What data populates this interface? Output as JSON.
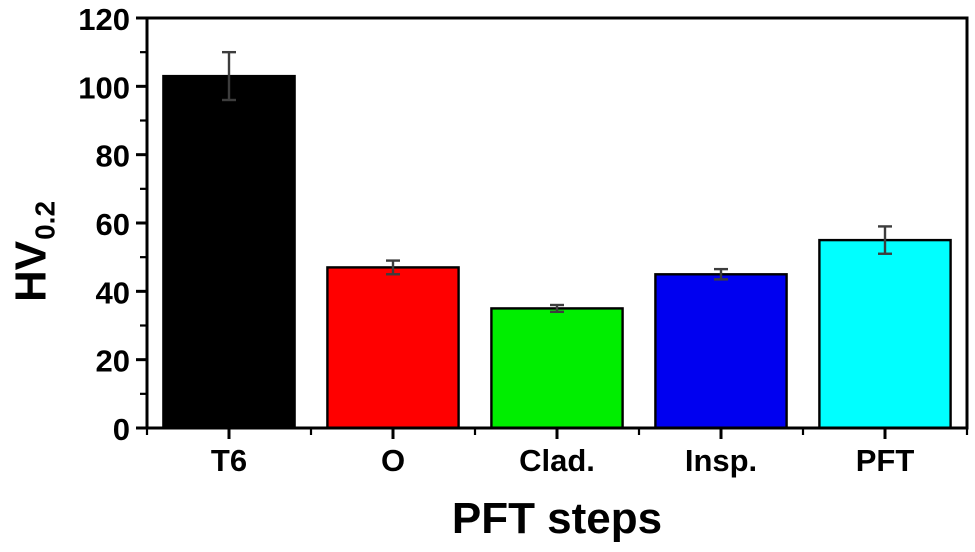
{
  "chart_data": {
    "type": "bar",
    "title": "",
    "xlabel": "PFT steps",
    "ylabel": "HV",
    "ylabel_sub": "0.2",
    "categories": [
      "T6",
      "O",
      "Clad.",
      "Insp.",
      "PFT"
    ],
    "values": [
      103,
      47,
      35,
      45,
      55
    ],
    "errors": [
      7,
      2,
      1,
      1.5,
      4
    ],
    "bar_colors": [
      "#000000",
      "#ff0000",
      "#00ee00",
      "#0000f0",
      "#00ffff"
    ],
    "bar_outline_color": "#000000",
    "error_bar_color": "#3d3d3d",
    "axis_color": "#000000",
    "ylim": [
      0,
      120
    ],
    "yticks": [
      0,
      20,
      40,
      60,
      80,
      100,
      120
    ],
    "minor_ytick_step": 10,
    "grid": false,
    "legend": null
  }
}
